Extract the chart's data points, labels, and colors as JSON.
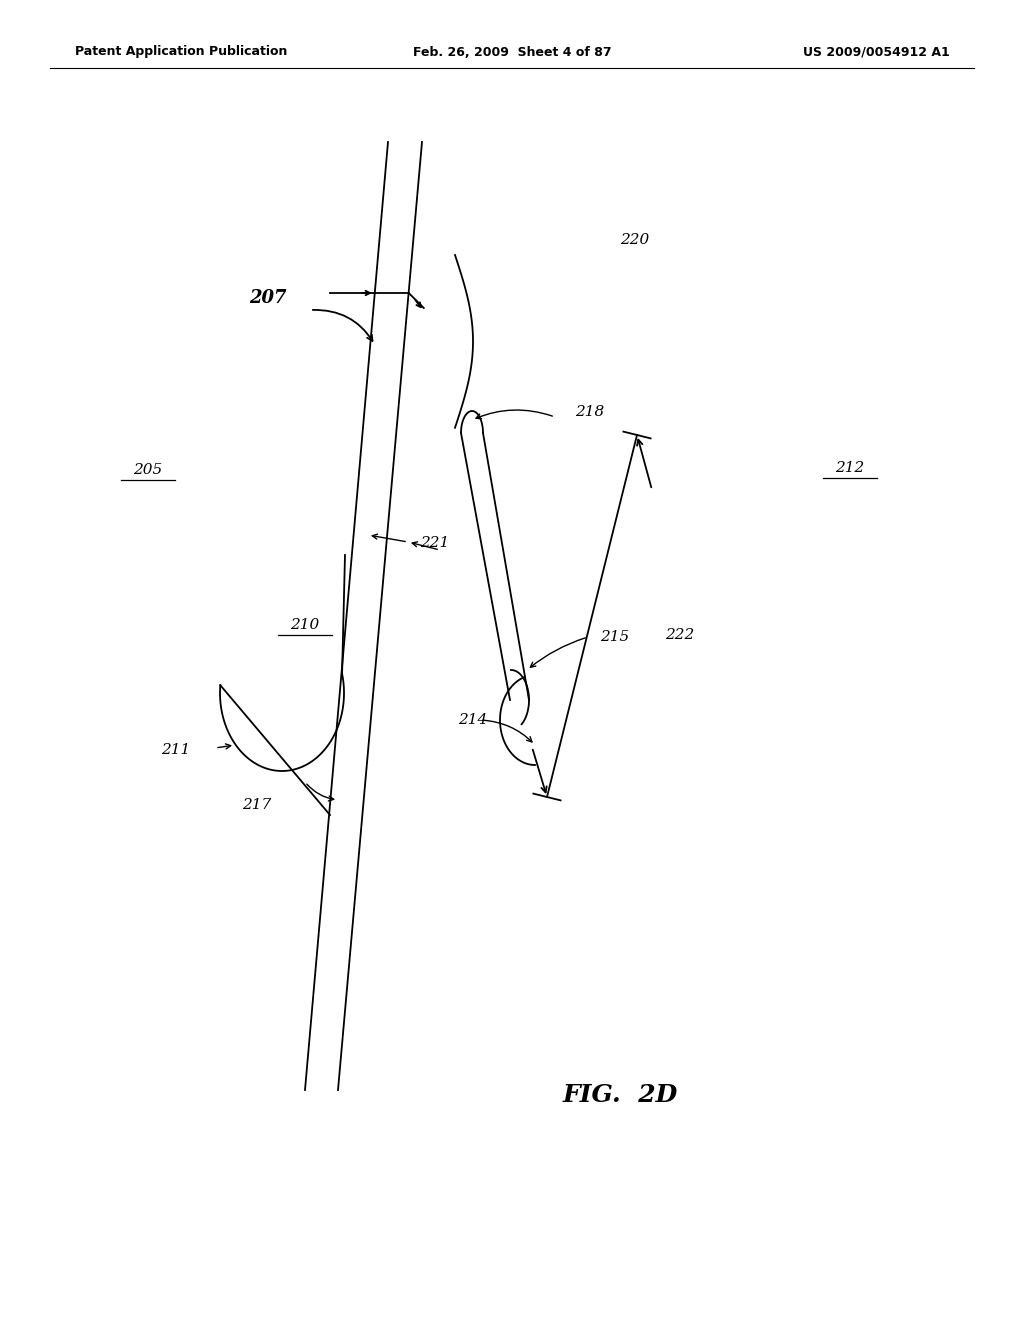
{
  "bg_color": "#ffffff",
  "header_left": "Patent Application Publication",
  "header_mid": "Feb. 26, 2009  Sheet 4 of 87",
  "header_right": "US 2009/0054912 A1",
  "fig_label": "FIG.  2D"
}
